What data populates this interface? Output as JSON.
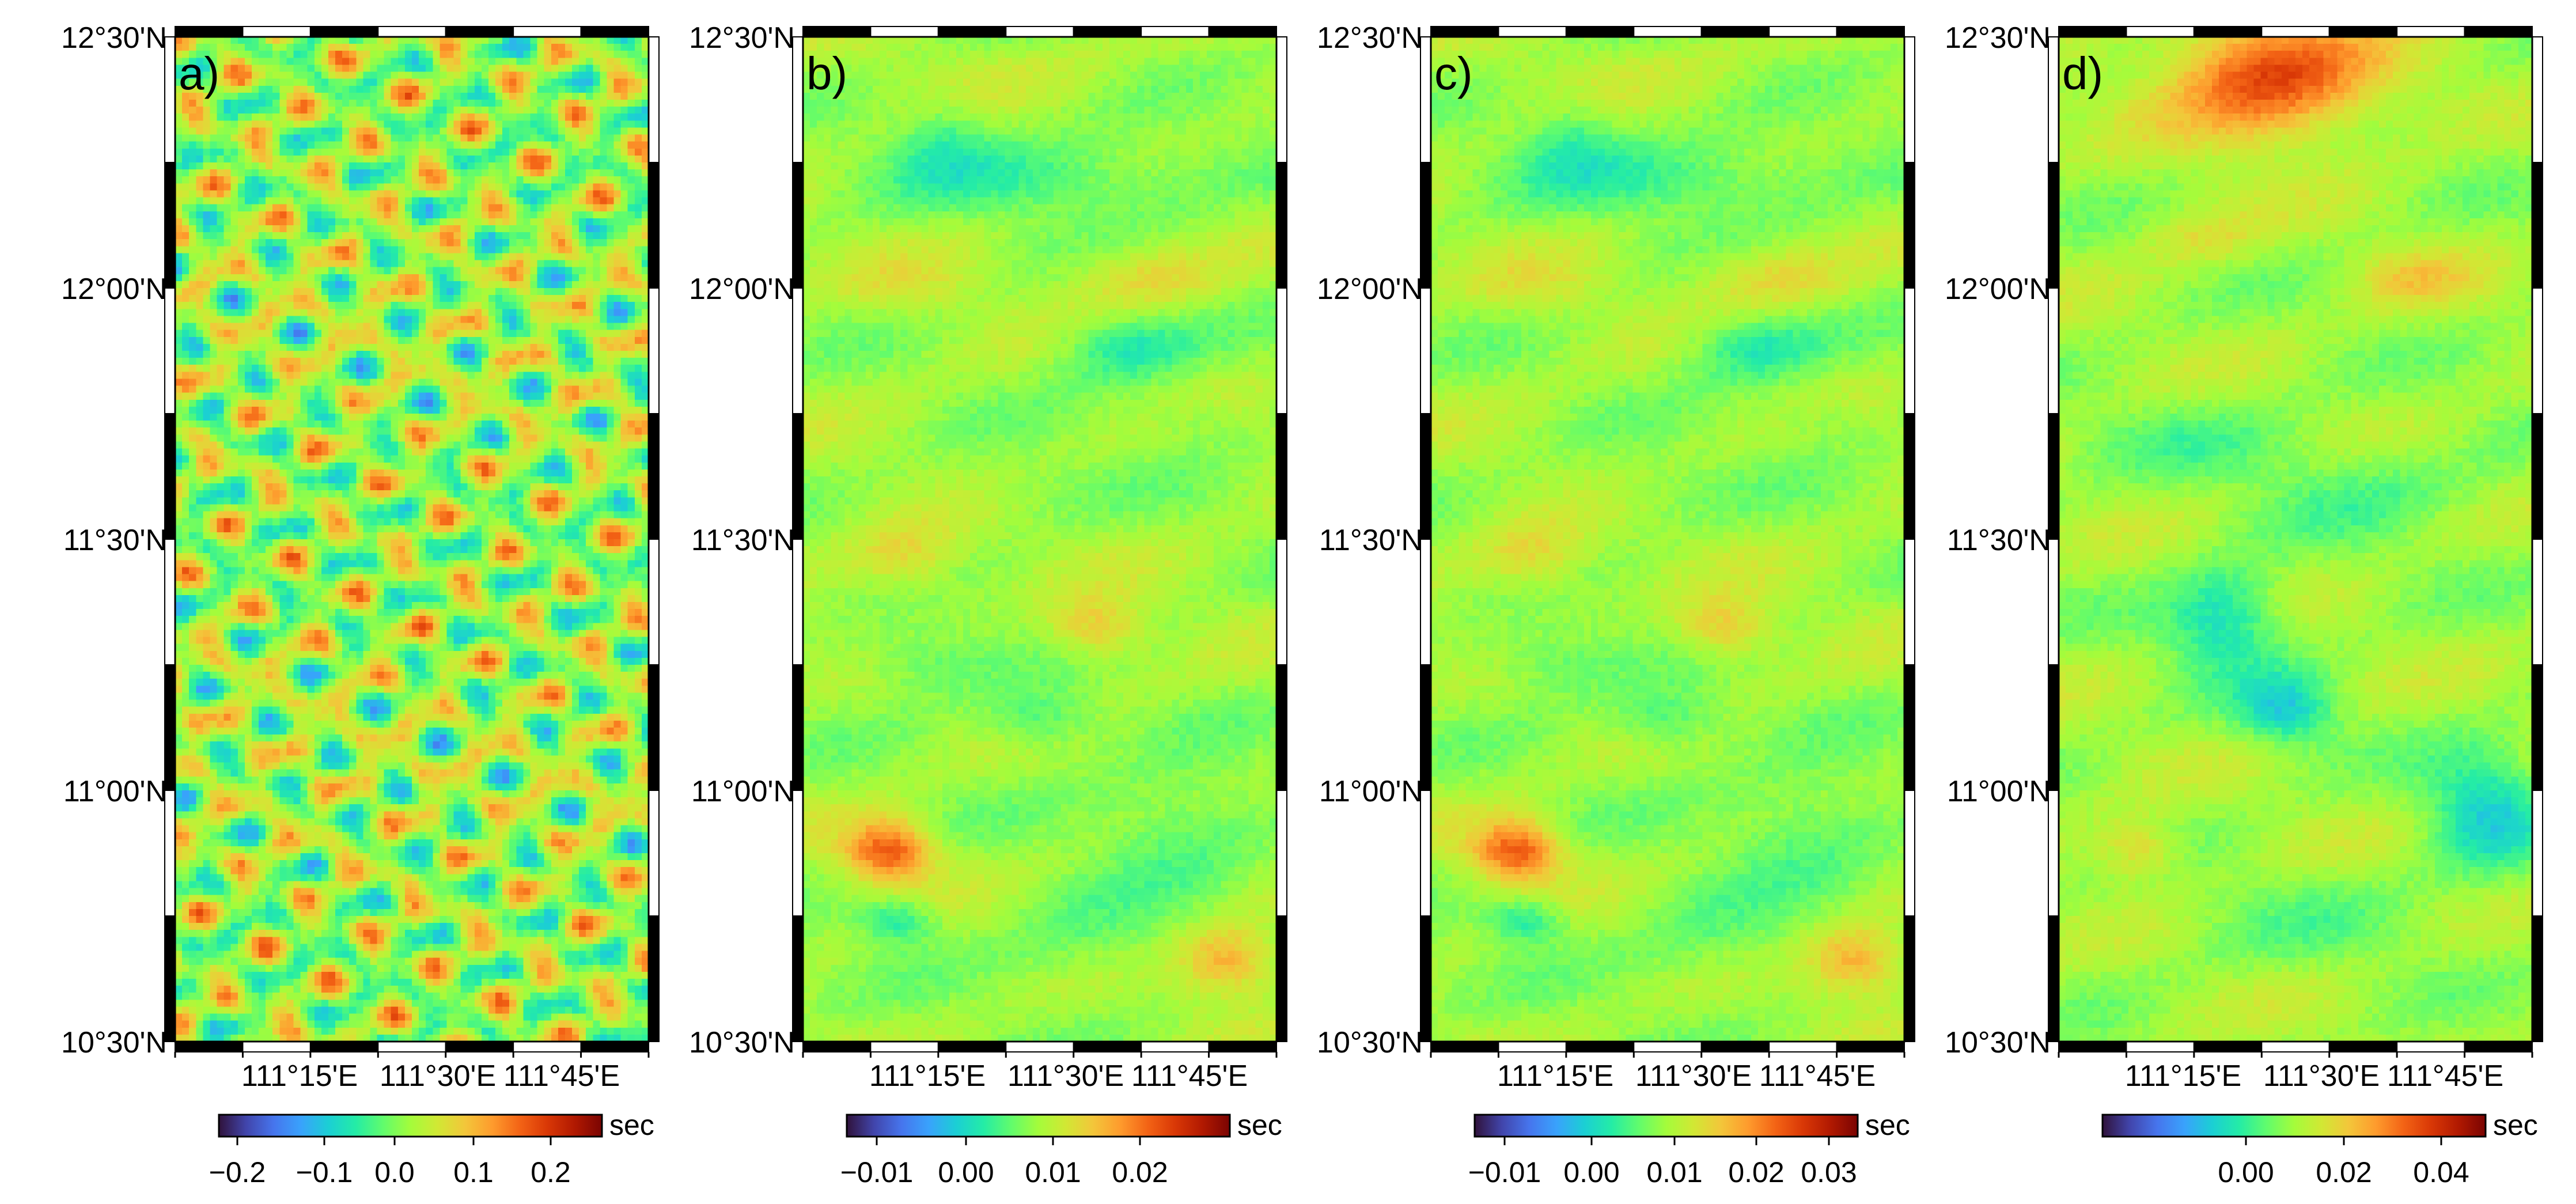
{
  "figure": {
    "lat_ticks": [
      "12°30'N",
      "12°00'N",
      "11°30'N",
      "11°00'N",
      "10°30'N"
    ],
    "lon_ticks": [
      "111°15'E",
      "111°30'E",
      "111°45'E"
    ],
    "colorbar_unit": "sec",
    "colormap": [
      "#30123b",
      "#4145ab",
      "#4675ed",
      "#39a2fc",
      "#1bcfd4",
      "#24eca6",
      "#61fc6c",
      "#a4fc3b",
      "#d1e834",
      "#f3c63a",
      "#fe9b2d",
      "#f36315",
      "#d93806",
      "#b11901",
      "#7a0402"
    ]
  },
  "panels": [
    {
      "label": "a)",
      "colorbar_ticks": [
        "−0.2",
        "−0.1",
        "0.0",
        "0.1",
        "0.2"
      ]
    },
    {
      "label": "b)",
      "colorbar_ticks": [
        "−0.01",
        "0.00",
        "0.01",
        "0.02"
      ]
    },
    {
      "label": "c)",
      "colorbar_ticks": [
        "−0.01",
        "0.00",
        "0.01",
        "0.02",
        "0.03"
      ]
    },
    {
      "label": "d)",
      "colorbar_ticks": [
        "0.00",
        "0.02",
        "0.04"
      ]
    }
  ]
}
